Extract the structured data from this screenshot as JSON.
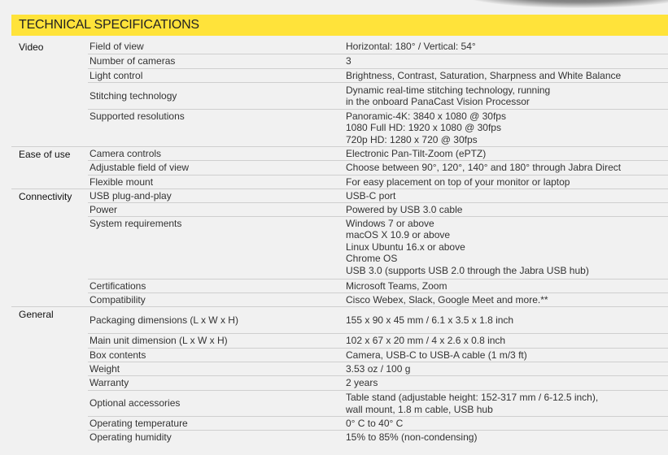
{
  "title": "TECHNICAL SPECIFICATIONS",
  "sections": [
    {
      "category": "Video",
      "rows": [
        {
          "label": "Field of view",
          "value": [
            "Horizontal: 180° / Vertical: 54°"
          ]
        },
        {
          "label": "Number of cameras",
          "value": [
            "3"
          ]
        },
        {
          "label": "Light control",
          "value": [
            "Brightness, Contrast, Saturation, Sharpness and White Balance"
          ]
        },
        {
          "label": "Stitching technology",
          "value": [
            "Dynamic real-time stitching technology, running",
            "in the onboard PanaCast Vision Processor"
          ]
        },
        {
          "label": "Supported resolutions",
          "value": [
            "Panoramic-4K: 3840 x 1080 @ 30fps",
            "1080 Full HD: 1920 x 1080 @ 30fps",
            "720p HD: 1280 x 720 @ 30fps"
          ]
        }
      ]
    },
    {
      "category": "Ease of use",
      "rows": [
        {
          "label": "Camera controls",
          "value": [
            "Electronic Pan-Tilt-Zoom (ePTZ)"
          ]
        },
        {
          "label": "Adjustable field of view",
          "value": [
            "Choose between 90°, 120°, 140° and 180° through Jabra Direct"
          ]
        },
        {
          "label": "Flexible mount",
          "value": [
            "For easy placement on top of your monitor or laptop"
          ]
        }
      ]
    },
    {
      "category": "Connectivity",
      "rows": [
        {
          "label": "USB plug-and-play",
          "value": [
            "USB-C port"
          ]
        },
        {
          "label": "Power",
          "value": [
            "Powered by USB 3.0 cable"
          ]
        },
        {
          "label": "System requirements",
          "value": [
            "Windows 7 or above",
            "macOS X 10.9 or above",
            "Linux Ubuntu 16.x or above",
            "Chrome OS",
            "USB 3.0 (supports USB 2.0 through the Jabra USB hub)"
          ]
        },
        {
          "label": "Certifications",
          "value": [
            "Microsoft Teams, Zoom"
          ]
        },
        {
          "label": "Compatibility",
          "value": [
            "Cisco Webex, Slack, Google Meet and more.**"
          ]
        }
      ]
    },
    {
      "category": "General",
      "rows": [
        {
          "label": "Packaging dimensions (L x W x H)",
          "value": [
            "155 x 90 x 45 mm / 6.1 x 3.5 x 1.8 inch"
          ]
        },
        {
          "label": "Main unit dimension (L x W x H)",
          "value": [
            "102 x 67 x 20 mm / 4 x 2.6 x 0.8 inch"
          ]
        },
        {
          "label": "Box contents",
          "value": [
            "Camera, USB-C to USB-A cable (1 m/3 ft)"
          ]
        },
        {
          "label": "Weight",
          "value": [
            "3.53 oz / 100 g"
          ]
        },
        {
          "label": "Warranty",
          "value": [
            "2 years"
          ]
        },
        {
          "label": "Optional accessories",
          "value": [
            "Table stand (adjustable height: 152-317 mm / 6-12.5 inch),",
            "wall mount, 1.8 m cable, USB hub"
          ]
        },
        {
          "label": "Operating temperature",
          "value": [
            "0° C to 40° C"
          ]
        },
        {
          "label": "Operating humidity",
          "value": [
            "15% to 85% (non-condensing)"
          ]
        }
      ]
    }
  ]
}
